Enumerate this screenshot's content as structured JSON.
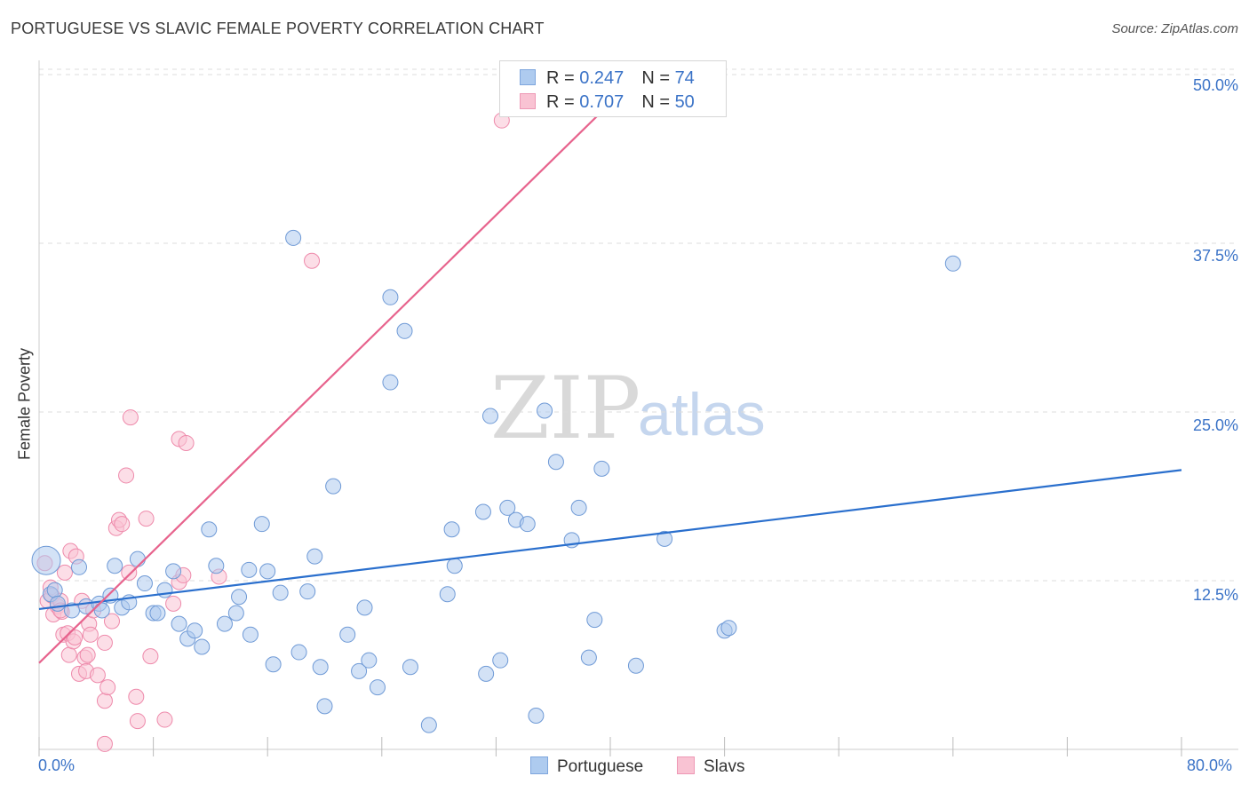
{
  "header": {
    "title": "PORTUGUESE VS SLAVIC FEMALE POVERTY CORRELATION CHART",
    "source": "Source: ZipAtlas.com"
  },
  "watermark": {
    "zip": "ZIP",
    "atlas": "atlas"
  },
  "legend": {
    "rows": [
      {
        "r_label": "R = ",
        "r_value": "0.247",
        "n_label": "N = ",
        "n_value": "74",
        "color": "#aecbef",
        "border": "#7ea6dd"
      },
      {
        "r_label": "R = ",
        "r_value": "0.707",
        "n_label": "N = ",
        "n_value": "50",
        "color": "#f9c3d3",
        "border": "#ee98b5"
      }
    ]
  },
  "colors": {
    "portuguese_fill": "#aecbef",
    "portuguese_stroke": "#6f9ad6",
    "portuguese_line": "#2a6fcd",
    "slavs_fill": "#f9c3d3",
    "slavs_stroke": "#ee8aab",
    "slavs_line": "#e7638d",
    "grid": "#dcdcdc",
    "tick_text": "#3b73c7"
  },
  "chart_data": {
    "type": "scatter",
    "title": "PORTUGUESE VS SLAVIC FEMALE POVERTY CORRELATION CHART",
    "xlabel": "",
    "ylabel": "Female Poverty",
    "xlim": [
      0,
      80
    ],
    "ylim": [
      0,
      51.5
    ],
    "x_tick_labels": [
      "0.0%",
      "80.0%"
    ],
    "y_ticks": [
      12.5,
      25.0,
      37.5,
      50.0
    ],
    "y_tick_labels": [
      "12.5%",
      "25.0%",
      "37.5%",
      "50.0%"
    ],
    "grid": true,
    "legend_position": "bottom",
    "series": [
      {
        "name": "Portuguese",
        "points": [
          [
            0.5,
            14.0
          ],
          [
            0.8,
            11.5
          ],
          [
            1.1,
            11.8
          ],
          [
            1.3,
            10.8
          ],
          [
            2.3,
            10.3
          ],
          [
            2.8,
            13.5
          ],
          [
            3.3,
            10.6
          ],
          [
            4.2,
            10.8
          ],
          [
            4.4,
            10.3
          ],
          [
            5.0,
            11.4
          ],
          [
            5.3,
            13.6
          ],
          [
            5.8,
            10.5
          ],
          [
            6.3,
            10.9
          ],
          [
            6.9,
            14.1
          ],
          [
            7.4,
            12.3
          ],
          [
            8.0,
            10.1
          ],
          [
            8.3,
            10.1
          ],
          [
            8.8,
            11.8
          ],
          [
            9.4,
            13.2
          ],
          [
            9.8,
            9.3
          ],
          [
            10.4,
            8.2
          ],
          [
            10.9,
            8.8
          ],
          [
            11.4,
            7.6
          ],
          [
            11.9,
            16.3
          ],
          [
            12.4,
            13.6
          ],
          [
            13.0,
            9.3
          ],
          [
            13.8,
            10.1
          ],
          [
            14.0,
            11.3
          ],
          [
            14.7,
            13.3
          ],
          [
            14.8,
            8.5
          ],
          [
            15.6,
            16.7
          ],
          [
            16.0,
            13.2
          ],
          [
            16.4,
            6.3
          ],
          [
            16.9,
            11.6
          ],
          [
            17.8,
            37.9
          ],
          [
            18.2,
            7.2
          ],
          [
            18.8,
            11.7
          ],
          [
            19.3,
            14.3
          ],
          [
            19.7,
            6.1
          ],
          [
            20.0,
            3.2
          ],
          [
            20.6,
            19.5
          ],
          [
            21.6,
            8.5
          ],
          [
            22.4,
            5.8
          ],
          [
            22.8,
            10.5
          ],
          [
            23.1,
            6.6
          ],
          [
            23.7,
            4.6
          ],
          [
            24.6,
            27.2
          ],
          [
            24.6,
            33.5
          ],
          [
            25.6,
            31.0
          ],
          [
            26.0,
            6.1
          ],
          [
            27.3,
            1.8
          ],
          [
            28.6,
            11.5
          ],
          [
            28.9,
            16.3
          ],
          [
            29.1,
            13.6
          ],
          [
            31.1,
            17.6
          ],
          [
            31.3,
            5.6
          ],
          [
            31.6,
            24.7
          ],
          [
            32.3,
            6.6
          ],
          [
            32.8,
            17.9
          ],
          [
            33.4,
            17.0
          ],
          [
            34.2,
            16.7
          ],
          [
            34.8,
            2.5
          ],
          [
            35.4,
            25.1
          ],
          [
            36.2,
            21.3
          ],
          [
            37.3,
            15.5
          ],
          [
            37.8,
            17.9
          ],
          [
            38.5,
            6.8
          ],
          [
            38.9,
            9.6
          ],
          [
            39.4,
            20.8
          ],
          [
            41.8,
            6.2
          ],
          [
            43.8,
            15.6
          ],
          [
            48.0,
            8.8
          ],
          [
            48.3,
            9.0
          ],
          [
            64.0,
            36.0
          ]
        ]
      },
      {
        "name": "Slavs",
        "points": [
          [
            0.4,
            13.8
          ],
          [
            0.6,
            11.0
          ],
          [
            0.8,
            12.0
          ],
          [
            0.9,
            11.4
          ],
          [
            1.0,
            10.0
          ],
          [
            1.3,
            10.6
          ],
          [
            1.5,
            11.0
          ],
          [
            1.6,
            10.2
          ],
          [
            1.7,
            8.5
          ],
          [
            1.8,
            13.1
          ],
          [
            2.0,
            8.6
          ],
          [
            2.1,
            7.0
          ],
          [
            2.2,
            14.7
          ],
          [
            2.4,
            8.0
          ],
          [
            2.6,
            14.3
          ],
          [
            2.8,
            5.6
          ],
          [
            3.0,
            11.0
          ],
          [
            3.2,
            6.8
          ],
          [
            3.3,
            5.8
          ],
          [
            3.5,
            9.3
          ],
          [
            3.6,
            8.5
          ],
          [
            3.8,
            10.3
          ],
          [
            4.1,
            5.5
          ],
          [
            4.6,
            7.9
          ],
          [
            4.6,
            3.6
          ],
          [
            4.8,
            4.6
          ],
          [
            5.1,
            9.5
          ],
          [
            5.4,
            16.4
          ],
          [
            5.6,
            17.0
          ],
          [
            5.8,
            16.7
          ],
          [
            6.1,
            20.3
          ],
          [
            6.3,
            13.1
          ],
          [
            6.4,
            24.6
          ],
          [
            6.8,
            3.9
          ],
          [
            6.9,
            2.1
          ],
          [
            7.5,
            17.1
          ],
          [
            7.8,
            6.9
          ],
          [
            8.8,
            2.2
          ],
          [
            9.4,
            10.8
          ],
          [
            9.8,
            23.0
          ],
          [
            9.8,
            12.4
          ],
          [
            10.1,
            12.9
          ],
          [
            10.3,
            22.7
          ],
          [
            12.6,
            12.8
          ],
          [
            19.1,
            36.2
          ],
          [
            32.4,
            46.6
          ],
          [
            4.6,
            0.4
          ],
          [
            1.5,
            10.3
          ],
          [
            3.4,
            7.0
          ],
          [
            2.5,
            8.3
          ]
        ]
      }
    ],
    "trendlines": [
      {
        "series": "Portuguese",
        "x": [
          0,
          80
        ],
        "y": [
          10.4,
          20.7
        ]
      },
      {
        "series": "Slavs",
        "x": [
          0,
          40.5
        ],
        "y": [
          6.4,
          48.4
        ]
      }
    ]
  },
  "bottom_legend": {
    "items": [
      "Portuguese",
      "Slavs"
    ]
  }
}
